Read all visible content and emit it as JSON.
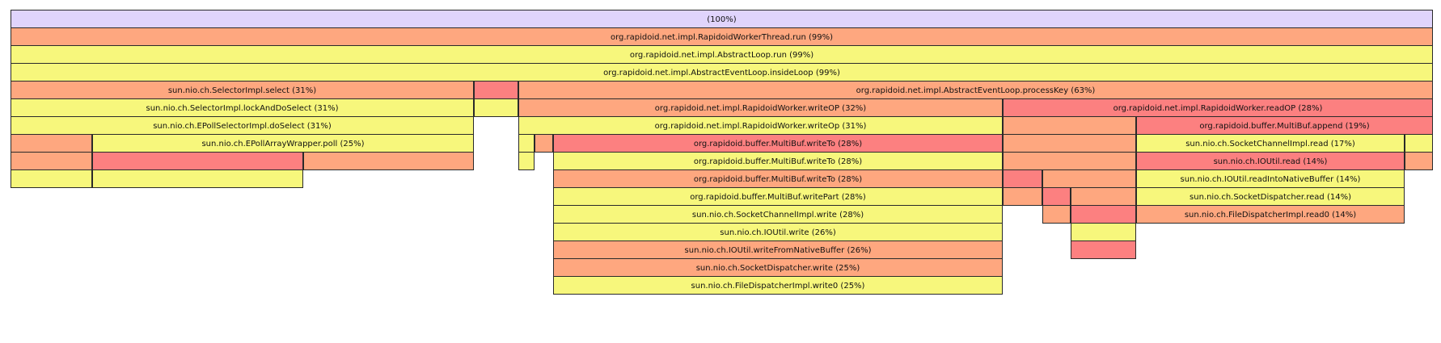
{
  "colors": {
    "root": "#e0d4fc",
    "orange": "#fea77f",
    "yellow": "#f7f77c",
    "red": "#fc8080"
  },
  "frames": [
    {
      "label": "(100%)",
      "color": "root"
    },
    {
      "label": "org.rapidoid.net.impl.RapidoidWorkerThread.run (99%)",
      "color": "orange"
    },
    {
      "label": "org.rapidoid.net.impl.AbstractLoop.run (99%)",
      "color": "yellow"
    },
    {
      "label": "org.rapidoid.net.impl.AbstractEventLoop.insideLoop (99%)",
      "color": "yellow"
    },
    {
      "label": "sun.nio.ch.SelectorImpl.select (31%)",
      "color": "orange"
    },
    {
      "label": "",
      "color": "red"
    },
    {
      "label": "org.rapidoid.net.impl.AbstractEventLoop.processKey (63%)",
      "color": "orange"
    },
    {
      "label": "sun.nio.ch.SelectorImpl.lockAndDoSelect (31%)",
      "color": "yellow"
    },
    {
      "label": "",
      "color": "yellow"
    },
    {
      "label": "org.rapidoid.net.impl.RapidoidWorker.writeOP (32%)",
      "color": "orange"
    },
    {
      "label": "org.rapidoid.net.impl.RapidoidWorker.readOP (28%)",
      "color": "red"
    },
    {
      "label": "sun.nio.ch.EPollSelectorImpl.doSelect (31%)",
      "color": "yellow"
    },
    {
      "label": "org.rapidoid.net.impl.RapidoidWorker.writeOp (31%)",
      "color": "yellow"
    },
    {
      "label": "",
      "color": "orange"
    },
    {
      "label": "org.rapidoid.buffer.MultiBuf.append (19%)",
      "color": "red"
    },
    {
      "label": "",
      "color": "orange"
    },
    {
      "label": "sun.nio.ch.EPollArrayWrapper.poll (25%)",
      "color": "yellow"
    },
    {
      "label": "",
      "color": "yellow"
    },
    {
      "label": "",
      "color": "orange"
    },
    {
      "label": "org.rapidoid.buffer.MultiBuf.writeTo (28%)",
      "color": "red"
    },
    {
      "label": "",
      "color": "orange"
    },
    {
      "label": "sun.nio.ch.SocketChannelImpl.read (17%)",
      "color": "yellow"
    },
    {
      "label": "",
      "color": "yellow"
    },
    {
      "label": "",
      "color": "orange"
    },
    {
      "label": "",
      "color": "red"
    },
    {
      "label": "",
      "color": "orange"
    },
    {
      "label": "",
      "color": "yellow"
    },
    {
      "label": "org.rapidoid.buffer.MultiBuf.writeTo (28%)",
      "color": "yellow"
    },
    {
      "label": "",
      "color": "orange"
    },
    {
      "label": "sun.nio.ch.IOUtil.read (14%)",
      "color": "red"
    },
    {
      "label": "",
      "color": "orange"
    },
    {
      "label": "",
      "color": "yellow"
    },
    {
      "label": "",
      "color": "yellow"
    },
    {
      "label": "org.rapidoid.buffer.MultiBuf.writeTo (28%)",
      "color": "orange"
    },
    {
      "label": "",
      "color": "red"
    },
    {
      "label": "",
      "color": "orange"
    },
    {
      "label": "sun.nio.ch.IOUtil.readIntoNativeBuffer (14%)",
      "color": "yellow"
    },
    {
      "label": "org.rapidoid.buffer.MultiBuf.writePart (28%)",
      "color": "yellow"
    },
    {
      "label": "",
      "color": "orange"
    },
    {
      "label": "",
      "color": "red"
    },
    {
      "label": "",
      "color": "orange"
    },
    {
      "label": "sun.nio.ch.SocketDispatcher.read (14%)",
      "color": "yellow"
    },
    {
      "label": "sun.nio.ch.SocketChannelImpl.write (28%)",
      "color": "yellow"
    },
    {
      "label": "",
      "color": "orange"
    },
    {
      "label": "",
      "color": "red"
    },
    {
      "label": "sun.nio.ch.FileDispatcherImpl.read0 (14%)",
      "color": "orange"
    },
    {
      "label": "sun.nio.ch.IOUtil.write (26%)",
      "color": "yellow"
    },
    {
      "label": "",
      "color": "yellow"
    },
    {
      "label": "sun.nio.ch.IOUtil.writeFromNativeBuffer (26%)",
      "color": "orange"
    },
    {
      "label": "",
      "color": "red"
    },
    {
      "label": "sun.nio.ch.SocketDispatcher.write (25%)",
      "color": "orange"
    },
    {
      "label": "sun.nio.ch.FileDispatcherImpl.write0 (25%)",
      "color": "yellow"
    }
  ]
}
